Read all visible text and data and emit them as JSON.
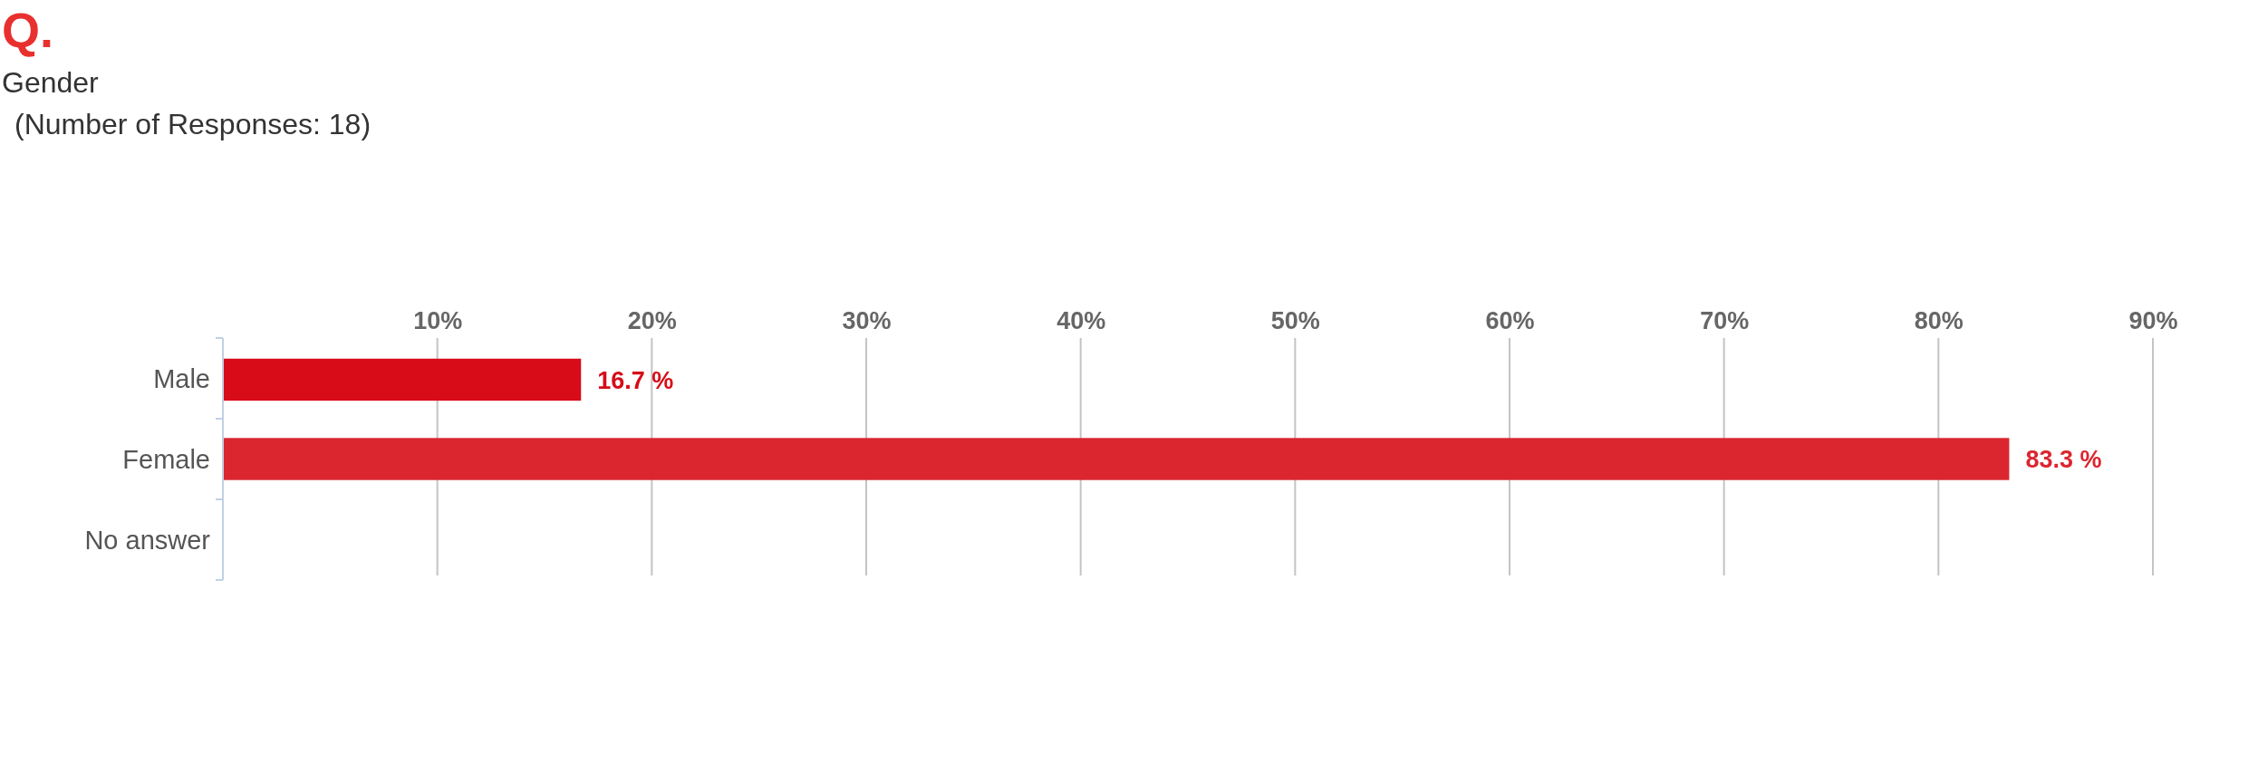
{
  "chart_data": {
    "type": "bar",
    "orientation": "horizontal",
    "title": "Q.",
    "subtitle": "Gender",
    "annotations": [
      "(Number of Responses: 18)"
    ],
    "categories": [
      "Male",
      "Female",
      "No answer"
    ],
    "values": [
      16.7,
      83.3,
      0
    ],
    "colors": [
      "#d70c18",
      "#db2630",
      "#db2630"
    ],
    "value_labels": [
      "16.7 %",
      "83.3 %",
      null
    ],
    "xlim": [
      0,
      90
    ],
    "xticks": [
      {
        "value": 10,
        "label": "10%"
      },
      {
        "value": 20,
        "label": "20%"
      },
      {
        "value": 30,
        "label": "30%"
      },
      {
        "value": 40,
        "label": "40%"
      },
      {
        "value": 50,
        "label": "50%"
      },
      {
        "value": 60,
        "label": "60%"
      },
      {
        "value": 70,
        "label": "70%"
      },
      {
        "value": 80,
        "label": "80%"
      },
      {
        "value": 90,
        "label": "90%"
      }
    ],
    "grid": "x"
  }
}
